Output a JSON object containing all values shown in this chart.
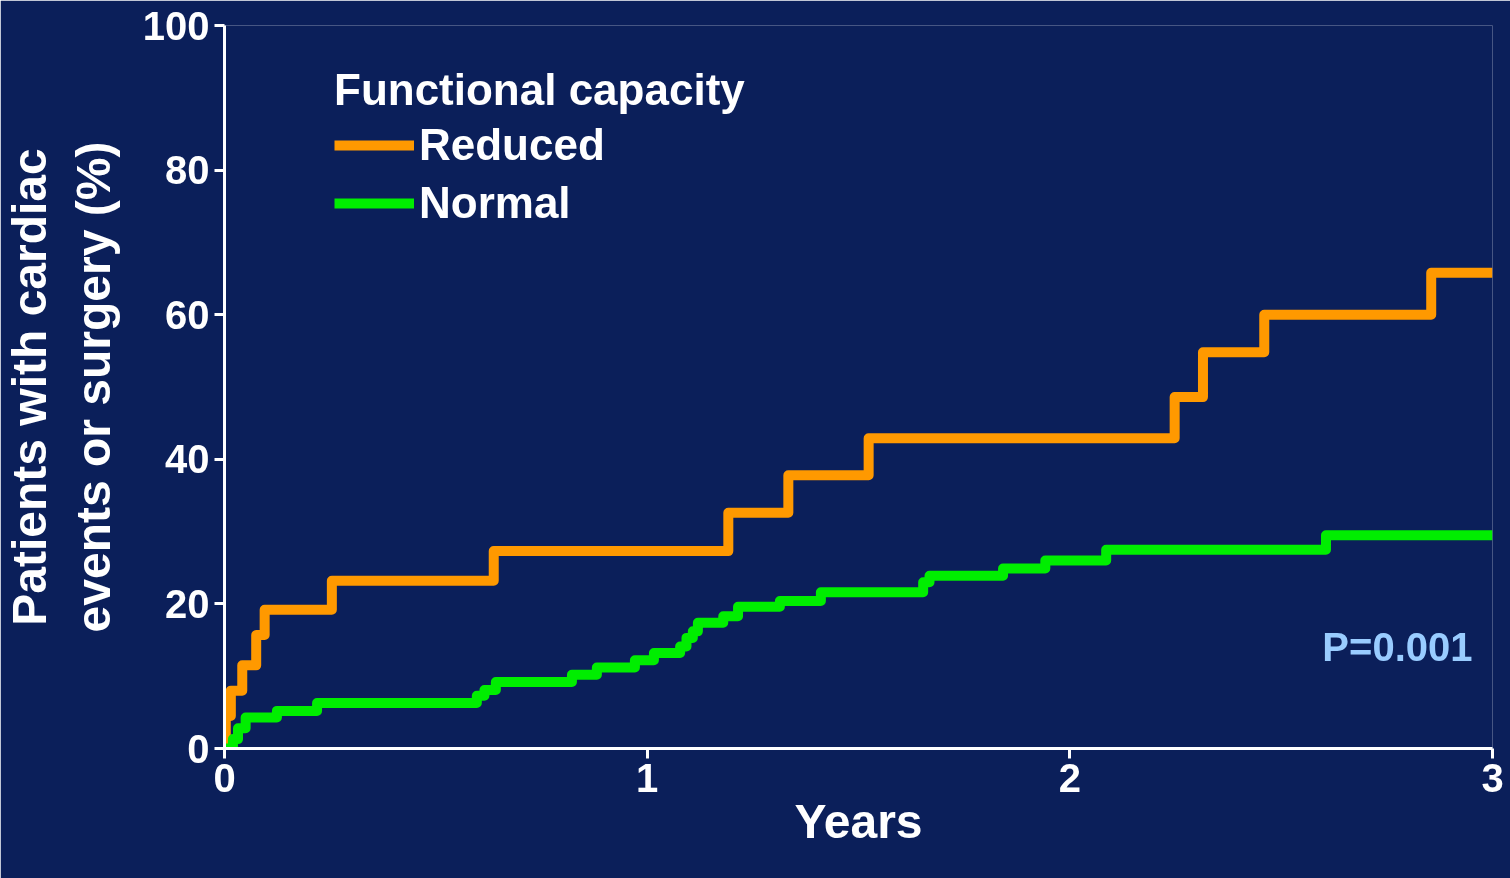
{
  "chart_data": {
    "type": "step",
    "xlabel": "Years",
    "ylabel": "Patients with cardiac\nevents or surgery (%)",
    "legend_title": "Functional capacity",
    "legend": "top left",
    "grid": false,
    "xlim": [
      0,
      3
    ],
    "ylim": [
      0,
      100
    ],
    "xticks": [
      0,
      1,
      2,
      3
    ],
    "yticks": [
      0,
      20,
      40,
      60,
      80,
      100
    ],
    "annotations": [
      "P=0.001"
    ],
    "series": [
      {
        "name": "Reduced",
        "color": "#ff9900",
        "x": [
          0,
          0.003,
          0.015,
          0.042,
          0.075,
          0.095,
          0.254,
          0.637,
          1.192,
          1.334,
          1.524,
          2.248,
          2.315,
          2.46,
          2.855,
          3.0
        ],
        "values": [
          0,
          4.5,
          8,
          11.5,
          15.7,
          19.2,
          23.2,
          27.3,
          32.6,
          37.8,
          42.9,
          48.6,
          54.8,
          60,
          65.8,
          65.8
        ]
      },
      {
        "name": "Normal",
        "color": "#00ee00",
        "x": [
          0,
          0.02,
          0.032,
          0.05,
          0.124,
          0.219,
          0.597,
          0.615,
          0.642,
          0.822,
          0.881,
          0.971,
          1.016,
          1.078,
          1.093,
          1.108,
          1.12,
          1.18,
          1.215,
          1.314,
          1.411,
          1.653,
          1.668,
          1.842,
          1.942,
          2.086,
          2.606,
          3.0
        ],
        "values": [
          0,
          1.3,
          2.8,
          4.3,
          5.2,
          6.3,
          7.3,
          8.1,
          9.2,
          10.2,
          11.2,
          12.2,
          13.2,
          14.1,
          15.3,
          16.2,
          17.4,
          18.3,
          19.6,
          20.4,
          21.6,
          23,
          23.9,
          24.9,
          26,
          27.5,
          29.5,
          29.5
        ]
      }
    ]
  }
}
